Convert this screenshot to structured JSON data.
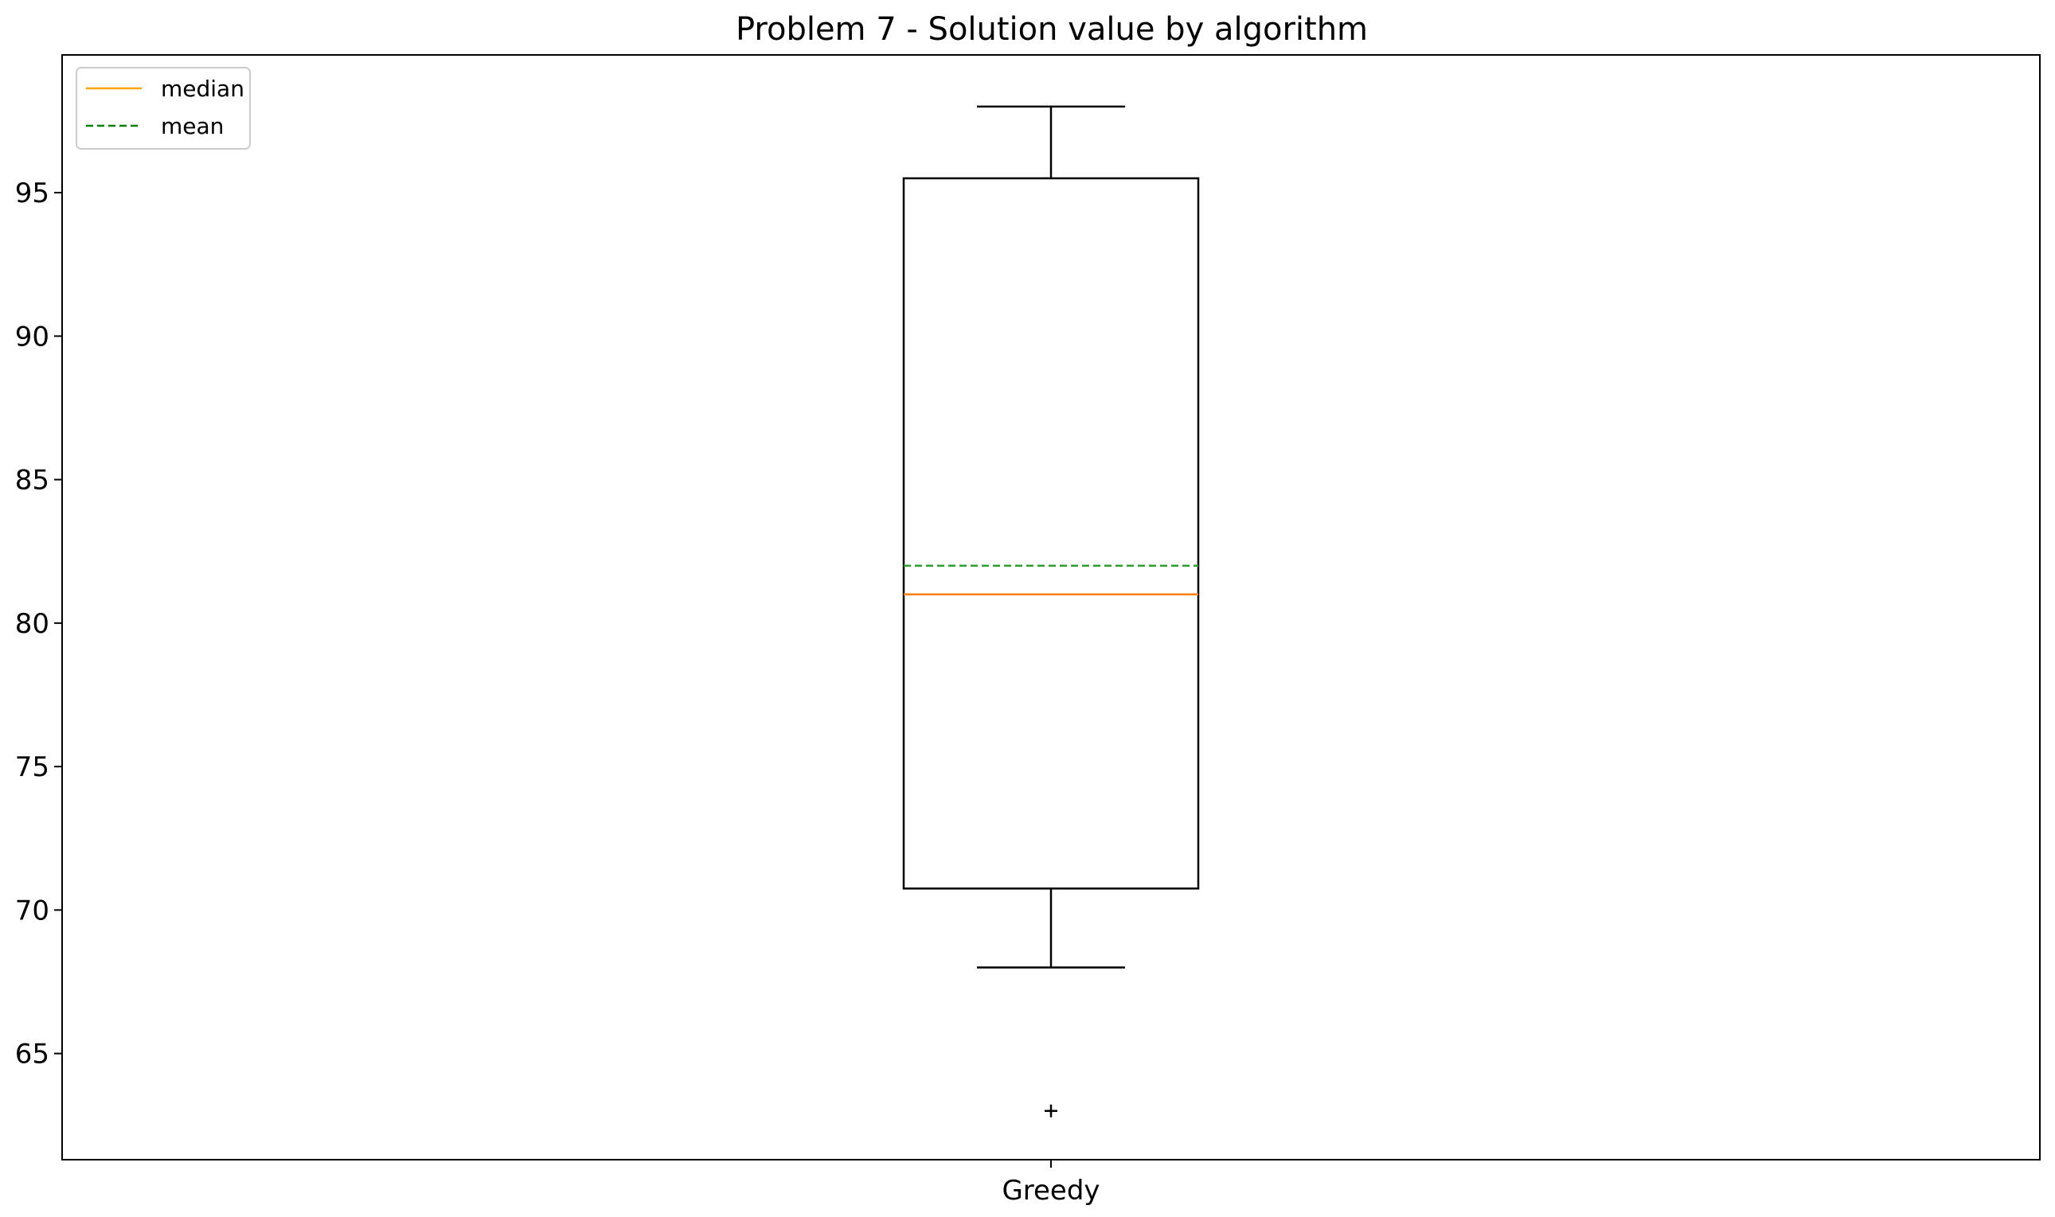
{
  "chart_data": {
    "type": "box",
    "title": "Problem 7 - Solution value by algorithm",
    "xlabel": "",
    "ylabel": "",
    "categories": [
      "Greedy"
    ],
    "boxes": [
      {
        "category": "Greedy",
        "whisker_low": 68,
        "q1": 70.75,
        "median": 81,
        "mean": 82,
        "q3": 95.5,
        "whisker_high": 98,
        "outliers": [
          63
        ]
      }
    ],
    "ylim": [
      61.3,
      99.8
    ],
    "yticks": [
      65,
      70,
      75,
      80,
      85,
      90,
      95
    ],
    "grid": false,
    "legend": {
      "placement": "upper-left",
      "entries": [
        {
          "label": "median",
          "color": "#ffa500",
          "style": "solid"
        },
        {
          "label": "mean",
          "color": "#008000",
          "style": "dashed"
        }
      ]
    },
    "colors": {
      "box": "#000000",
      "median": "#ff7f0e",
      "mean": "#2ca02c"
    }
  }
}
